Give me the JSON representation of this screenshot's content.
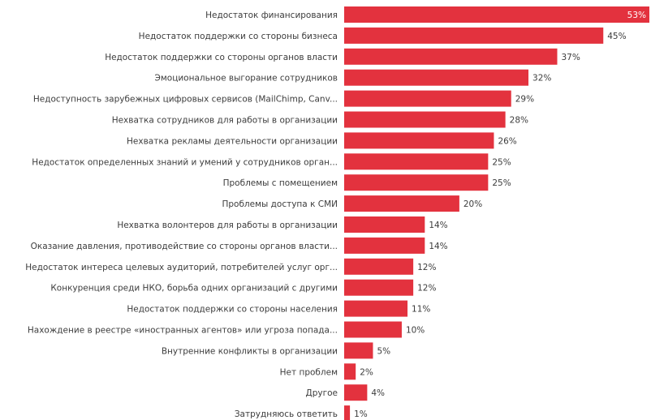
{
  "chart_data": {
    "type": "bar",
    "orientation": "horizontal",
    "title": "",
    "xlabel": "",
    "ylabel": "",
    "grid": false,
    "bar_color": "#e3323e",
    "unit_suffix": "%",
    "xlim": [
      0,
      53
    ],
    "categories": [
      "Недостаток финансирования",
      "Недостаток поддержки со стороны бизнеса",
      "Недостаток поддержки со стороны органов власти",
      "Эмоциональное выгорание сотрудников",
      "Недоступность зарубежных цифровых сервисов (MailChimp, Canv...",
      "Нехватка сотрудников для работы в организации",
      "Нехватка рекламы деятельности организации",
      "Недостаток определенных знаний и умений у сотрудников орган...",
      "Проблемы с помещением",
      "Проблемы доступа к СМИ",
      "Нехватка волонтеров для работы в организации",
      "Оказание давления, противодействие со стороны органов власти...",
      "Недостаток интереса целевых аудиторий, потребителей услуг орг...",
      "Конкуренция среди НКО, борьба одних организаций с другими",
      "Недостаток поддержки со стороны населения",
      "Нахождение в реестре «иностранных агентов» или угроза попада...",
      "Внутренние конфликты в организации",
      "Нет проблем",
      "Другое",
      "Затрудняюсь ответить"
    ],
    "values": [
      53,
      45,
      37,
      32,
      29,
      28,
      26,
      25,
      25,
      20,
      14,
      14,
      12,
      12,
      11,
      10,
      5,
      2,
      4,
      1
    ],
    "value_labels": [
      "53%",
      "45%",
      "37%",
      "32%",
      "29%",
      "28%",
      "26%",
      "25%",
      "25%",
      "20%",
      "14%",
      "14%",
      "12%",
      "12%",
      "11%",
      "10%",
      "5%",
      "2%",
      "4%",
      "1%"
    ]
  }
}
